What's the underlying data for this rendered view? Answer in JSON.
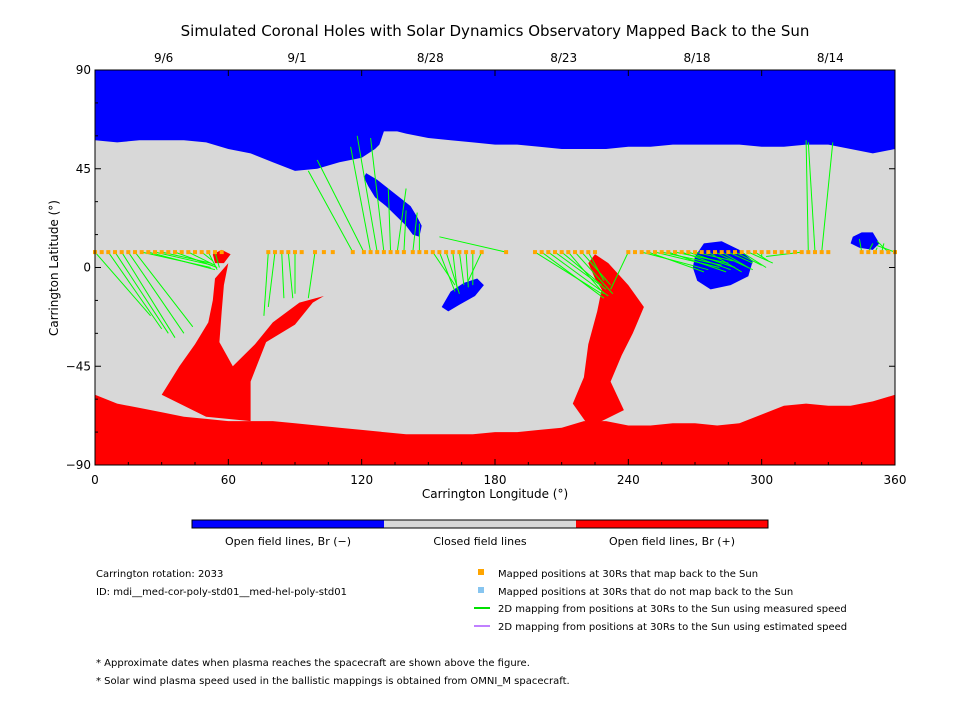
{
  "chart_data": {
    "type": "map",
    "title": "Simulated Coronal Holes with Solar Dynamics Observatory Mapped Back to the Sun",
    "xlabel": "Carrington Longitude (°)",
    "ylabel": "Carrington Latitude (°)",
    "xlim": [
      0,
      360
    ],
    "ylim": [
      -90,
      90
    ],
    "x_ticks": [
      0,
      60,
      120,
      180,
      240,
      300,
      360
    ],
    "y_ticks": [
      -90,
      -45,
      0,
      45,
      90
    ],
    "top_axis": {
      "ticks": [
        {
          "lon": 30,
          "label": "9/6"
        },
        {
          "lon": 90,
          "label": "9/1"
        },
        {
          "lon": 150,
          "label": "8/28"
        },
        {
          "lon": 210,
          "label": "8/23"
        },
        {
          "lon": 270,
          "label": "8/18"
        },
        {
          "lon": 330,
          "label": "8/14"
        }
      ]
    },
    "colors": {
      "open_negative": "#0000ff",
      "closed": "#d8d8d8",
      "open_positive": "#ff0000",
      "mapped_points": "#ffa500",
      "unmapped_points": "#87c5f0",
      "measured_lines": "#00ff00",
      "estimated_lines": "#c080ff"
    },
    "north_boundary": [
      [
        0,
        58
      ],
      [
        10,
        57
      ],
      [
        20,
        58
      ],
      [
        30,
        58
      ],
      [
        40,
        58
      ],
      [
        50,
        57
      ],
      [
        60,
        54
      ],
      [
        70,
        52
      ],
      [
        80,
        48
      ],
      [
        90,
        44
      ],
      [
        100,
        45
      ],
      [
        110,
        48
      ],
      [
        120,
        50
      ],
      [
        126,
        54
      ],
      [
        128,
        56
      ],
      [
        130,
        62
      ],
      [
        136,
        62
      ],
      [
        140,
        61
      ],
      [
        150,
        59
      ],
      [
        160,
        58
      ],
      [
        170,
        57
      ],
      [
        180,
        56
      ],
      [
        190,
        56
      ],
      [
        200,
        55
      ],
      [
        210,
        54
      ],
      [
        220,
        54
      ],
      [
        230,
        54
      ],
      [
        240,
        55
      ],
      [
        250,
        55
      ],
      [
        260,
        56
      ],
      [
        270,
        56
      ],
      [
        280,
        56
      ],
      [
        290,
        56
      ],
      [
        300,
        55
      ],
      [
        310,
        55
      ],
      [
        320,
        56
      ],
      [
        330,
        56
      ],
      [
        340,
        54
      ],
      [
        350,
        52
      ],
      [
        360,
        54
      ]
    ],
    "south_boundary": [
      [
        0,
        -58
      ],
      [
        10,
        -62
      ],
      [
        20,
        -64
      ],
      [
        30,
        -66
      ],
      [
        40,
        -68
      ],
      [
        50,
        -69
      ],
      [
        60,
        -70
      ],
      [
        70,
        -70
      ],
      [
        80,
        -70
      ],
      [
        90,
        -71
      ],
      [
        100,
        -72
      ],
      [
        110,
        -73
      ],
      [
        120,
        -74
      ],
      [
        130,
        -75
      ],
      [
        140,
        -76
      ],
      [
        150,
        -76
      ],
      [
        160,
        -76
      ],
      [
        170,
        -76
      ],
      [
        180,
        -75
      ],
      [
        190,
        -75
      ],
      [
        200,
        -74
      ],
      [
        210,
        -73
      ],
      [
        220,
        -70
      ],
      [
        230,
        -70
      ],
      [
        240,
        -72
      ],
      [
        250,
        -72
      ],
      [
        260,
        -71
      ],
      [
        270,
        -71
      ],
      [
        280,
        -72
      ],
      [
        290,
        -71
      ],
      [
        300,
        -67
      ],
      [
        310,
        -63
      ],
      [
        320,
        -62
      ],
      [
        330,
        -63
      ],
      [
        340,
        -63
      ],
      [
        350,
        -61
      ],
      [
        360,
        -58
      ]
    ],
    "coronal_holes": [
      {
        "polarity": "negative",
        "outline": [
          [
            122,
            43
          ],
          [
            127,
            40
          ],
          [
            132,
            36
          ],
          [
            137,
            32
          ],
          [
            142,
            28
          ],
          [
            145,
            23
          ],
          [
            147,
            19
          ],
          [
            146,
            14
          ],
          [
            143,
            15
          ],
          [
            140,
            19
          ],
          [
            136,
            23
          ],
          [
            131,
            28
          ],
          [
            126,
            32
          ],
          [
            123,
            37
          ],
          [
            121,
            41
          ]
        ]
      },
      {
        "polarity": "negative",
        "outline": [
          [
            156,
            -18
          ],
          [
            160,
            -11
          ],
          [
            166,
            -7
          ],
          [
            172,
            -5
          ],
          [
            175,
            -8
          ],
          [
            171,
            -13
          ],
          [
            164,
            -17
          ],
          [
            159,
            -20
          ]
        ]
      },
      {
        "polarity": "negative",
        "outline": [
          [
            270,
            5
          ],
          [
            274,
            11
          ],
          [
            282,
            12
          ],
          [
            290,
            8
          ],
          [
            296,
            3
          ],
          [
            294,
            -4
          ],
          [
            286,
            -8
          ],
          [
            277,
            -10
          ],
          [
            271,
            -6
          ],
          [
            269,
            0
          ]
        ]
      },
      {
        "polarity": "negative",
        "outline": [
          [
            341,
            14
          ],
          [
            345,
            16
          ],
          [
            350,
            16
          ],
          [
            353,
            11
          ],
          [
            350,
            8
          ],
          [
            344,
            9
          ],
          [
            340,
            11
          ]
        ]
      },
      {
        "polarity": "positive",
        "outline": [
          [
            53,
            6
          ],
          [
            57,
            8
          ],
          [
            61,
            6
          ],
          [
            58,
            2
          ],
          [
            54,
            2
          ]
        ]
      },
      {
        "polarity": "positive",
        "outline": [
          [
            60,
            2
          ],
          [
            54,
            -5
          ],
          [
            53,
            -15
          ],
          [
            51,
            -25
          ],
          [
            45,
            -35
          ],
          [
            38,
            -45
          ],
          [
            30,
            -58
          ],
          [
            50,
            -68
          ],
          [
            70,
            -70
          ],
          [
            70,
            -52
          ],
          [
            77,
            -34
          ],
          [
            90,
            -26
          ],
          [
            98,
            -16
          ],
          [
            103,
            -13
          ],
          [
            92,
            -16
          ],
          [
            80,
            -25
          ],
          [
            72,
            -35
          ],
          [
            62,
            -45
          ],
          [
            56,
            -34
          ],
          [
            57,
            -20
          ],
          [
            58,
            -8
          ]
        ]
      },
      {
        "polarity": "positive",
        "outline": [
          [
            225,
            6
          ],
          [
            231,
            2
          ],
          [
            240,
            -8
          ],
          [
            247,
            -18
          ],
          [
            242,
            -30
          ],
          [
            237,
            -40
          ],
          [
            232,
            -52
          ],
          [
            238,
            -65
          ],
          [
            228,
            -70
          ],
          [
            222,
            -72
          ],
          [
            215,
            -62
          ],
          [
            220,
            -50
          ],
          [
            222,
            -35
          ],
          [
            226,
            -20
          ],
          [
            228,
            -10
          ],
          [
            225,
            -5
          ],
          [
            222,
            2
          ]
        ]
      }
    ],
    "mapping": {
      "spacecraft_lat": 7,
      "points_lon": [
        0,
        3,
        6,
        9,
        12,
        15,
        18,
        21,
        24,
        27,
        30,
        33,
        36,
        39,
        42,
        45,
        48,
        51,
        54,
        57,
        78,
        81,
        84,
        87,
        90,
        93,
        99,
        103,
        107,
        116,
        121,
        124,
        127,
        130,
        133,
        136,
        139,
        143,
        146,
        149,
        152,
        155,
        158,
        161,
        164,
        167,
        170,
        174,
        185,
        198,
        201,
        204,
        207,
        210,
        213,
        216,
        219,
        222,
        225,
        240,
        243,
        246,
        249,
        252,
        255,
        258,
        261,
        264,
        267,
        270,
        273,
        276,
        279,
        282,
        285,
        288,
        291,
        294,
        297,
        300,
        303,
        306,
        309,
        312,
        315,
        318,
        321,
        324,
        327,
        330,
        345,
        348,
        351,
        354,
        357,
        360
      ],
      "lines": [
        [
          0,
          7,
          25,
          -22
        ],
        [
          6,
          7,
          30,
          -28
        ],
        [
          9,
          7,
          33,
          -30
        ],
        [
          12,
          7,
          36,
          -32
        ],
        [
          15,
          7,
          40,
          -30
        ],
        [
          18,
          7,
          44,
          -27
        ],
        [
          21,
          7,
          52,
          0
        ],
        [
          24,
          7,
          54,
          -1
        ],
        [
          27,
          7,
          53,
          1
        ],
        [
          30,
          7,
          52,
          2
        ],
        [
          36,
          7,
          55,
          0
        ],
        [
          42,
          7,
          54,
          1
        ],
        [
          48,
          7,
          53,
          3
        ],
        [
          51,
          7,
          55,
          -1
        ],
        [
          54,
          7,
          56,
          0
        ],
        [
          78,
          7,
          76,
          -22
        ],
        [
          81,
          7,
          78,
          -18
        ],
        [
          84,
          7,
          85,
          -14
        ],
        [
          87,
          7,
          89,
          -14
        ],
        [
          90,
          7,
          90,
          -12
        ],
        [
          99,
          7,
          96,
          -14
        ],
        [
          116,
          7,
          96,
          44
        ],
        [
          121,
          7,
          100,
          49
        ],
        [
          124,
          7,
          115,
          55
        ],
        [
          127,
          7,
          118,
          60
        ],
        [
          130,
          7,
          124,
          59
        ],
        [
          133,
          7,
          132,
          36
        ],
        [
          136,
          7,
          140,
          36
        ],
        [
          139,
          7,
          140,
          26
        ],
        [
          143,
          7,
          145,
          25
        ],
        [
          146,
          7,
          146,
          20
        ],
        [
          152,
          7,
          162,
          -8
        ],
        [
          155,
          7,
          162,
          -11
        ],
        [
          158,
          7,
          164,
          -12
        ],
        [
          161,
          7,
          163,
          -10
        ],
        [
          164,
          7,
          166,
          -8
        ],
        [
          167,
          7,
          168,
          -9
        ],
        [
          170,
          7,
          170,
          -8
        ],
        [
          174,
          7,
          168,
          -6
        ],
        [
          185,
          7,
          155,
          14
        ],
        [
          198,
          7,
          228,
          -12
        ],
        [
          201,
          7,
          229,
          -14
        ],
        [
          204,
          7,
          231,
          -13
        ],
        [
          207,
          7,
          230,
          -10
        ],
        [
          210,
          7,
          228,
          -8
        ],
        [
          213,
          7,
          229,
          -12
        ],
        [
          216,
          7,
          233,
          -12
        ],
        [
          219,
          7,
          232,
          -8
        ],
        [
          222,
          7,
          229,
          -6
        ],
        [
          240,
          7,
          232,
          -10
        ],
        [
          246,
          7,
          276,
          -1
        ],
        [
          249,
          7,
          274,
          -2
        ],
        [
          252,
          7,
          281,
          0
        ],
        [
          255,
          7,
          282,
          1
        ],
        [
          258,
          7,
          284,
          -2
        ],
        [
          261,
          7,
          285,
          2
        ],
        [
          264,
          7,
          286,
          -1
        ],
        [
          267,
          7,
          288,
          0
        ],
        [
          270,
          7,
          287,
          3
        ],
        [
          276,
          7,
          291,
          -2
        ],
        [
          279,
          7,
          296,
          -1
        ],
        [
          282,
          7,
          294,
          0
        ],
        [
          285,
          7,
          296,
          2
        ],
        [
          288,
          7,
          300,
          1
        ],
        [
          291,
          7,
          302,
          0
        ],
        [
          294,
          7,
          305,
          2
        ],
        [
          297,
          7,
          303,
          3
        ],
        [
          300,
          7,
          300,
          5
        ],
        [
          318,
          7,
          302,
          5
        ],
        [
          321,
          7,
          320,
          58
        ],
        [
          324,
          7,
          321,
          57
        ],
        [
          327,
          7,
          332,
          57
        ],
        [
          345,
          7,
          344,
          13
        ],
        [
          348,
          7,
          350,
          11
        ],
        [
          351,
          7,
          352,
          9
        ],
        [
          354,
          7,
          355,
          11
        ],
        [
          357,
          7,
          352,
          12
        ],
        [
          360,
          7,
          352,
          10
        ]
      ]
    },
    "colorbar": {
      "labels": [
        "Open field lines, Br (−)",
        "Closed field lines",
        "Open field lines, Br (+)"
      ]
    },
    "info": {
      "rotation": "Carrington rotation: 2033",
      "id": "ID: mdi__med-cor-poly-std01__med-hel-poly-std01"
    },
    "legend": [
      {
        "marker": "square",
        "color": "#ffa500",
        "label": "Mapped positions at 30Rs that map back to the Sun"
      },
      {
        "marker": "square",
        "color": "#87c5f0",
        "label": "Mapped positions at 30Rs that do not map back to the Sun"
      },
      {
        "marker": "line",
        "color": "#00e000",
        "label": "2D mapping from positions at 30Rs to the Sun using measured speed"
      },
      {
        "marker": "line",
        "color": "#c080ff",
        "label": "2D mapping from positions at 30Rs to the Sun using estimated speed"
      }
    ],
    "notes": [
      "* Approximate dates when plasma reaches the spacecraft are shown above the figure.",
      "* Solar wind plasma speed used in the ballistic mappings is obtained from OMNI_M spacecraft."
    ]
  }
}
